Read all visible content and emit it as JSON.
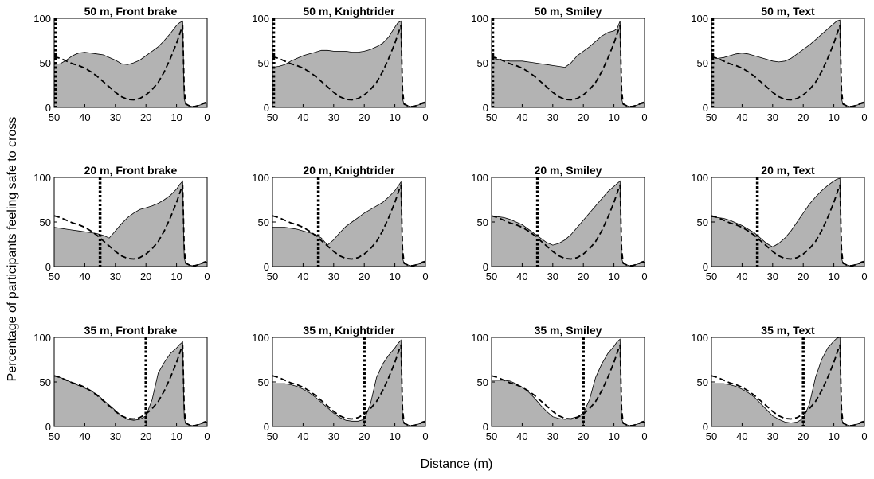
{
  "figure": {
    "ylabel": "Percentage of participants feeling safe to cross",
    "xlabel": "Distance (m)"
  },
  "colors": {
    "fill": "#b3b3b3",
    "line": "#000000",
    "background": "#ffffff"
  },
  "chart_data": {
    "type": "area",
    "xlim": [
      50,
      0
    ],
    "ylim": [
      0,
      100
    ],
    "x_ticks": [
      50,
      40,
      30,
      20,
      10,
      0
    ],
    "y_ticks": [
      0,
      50,
      100
    ],
    "x_tick_labels": [
      "50",
      "40",
      "30",
      "20",
      "10",
      "0"
    ],
    "y_tick_labels": [
      "0",
      "50",
      "100"
    ],
    "x_reversed": true,
    "grid": false,
    "legend": "none",
    "x": [
      50,
      48,
      46,
      44,
      42,
      40,
      38,
      36,
      34,
      32,
      30,
      28,
      26,
      24,
      22,
      20,
      18,
      16,
      14,
      12,
      10,
      9,
      8,
      7.5,
      7,
      6,
      5,
      4,
      3,
      2,
      1,
      0
    ],
    "reference_curve": {
      "style": "dashed",
      "values": [
        57,
        55,
        52,
        49,
        47,
        44,
        40,
        35,
        29,
        23,
        17,
        12,
        9,
        8.5,
        10,
        14,
        20,
        28,
        40,
        55,
        72,
        82,
        92,
        20,
        4,
        2,
        1,
        1,
        2,
        3,
        5,
        6
      ]
    },
    "panels": [
      {
        "title": "50 m, Front brake",
        "row": 0,
        "col": 0,
        "dotted_line_x": 50,
        "values": [
          48,
          49,
          53,
          58,
          61,
          62,
          61,
          60,
          59,
          56,
          53,
          49,
          48,
          50,
          53,
          58,
          63,
          68,
          75,
          83,
          92,
          95,
          97,
          10,
          3,
          2,
          1,
          1,
          2,
          3,
          4,
          5
        ]
      },
      {
        "title": "50 m, Knightrider",
        "row": 0,
        "col": 1,
        "dotted_line_x": 50,
        "values": [
          45,
          46,
          48,
          52,
          55,
          58,
          60,
          62,
          64,
          64,
          63,
          63,
          63,
          62,
          62,
          63,
          65,
          68,
          72,
          79,
          90,
          95,
          97,
          10,
          3,
          2,
          1,
          1,
          2,
          3,
          4,
          5
        ]
      },
      {
        "title": "50 m, Smiley",
        "row": 0,
        "col": 2,
        "dotted_line_x": 50,
        "values": [
          55,
          54,
          53,
          52,
          52,
          52,
          51,
          50,
          49,
          48,
          47,
          46,
          45,
          50,
          58,
          63,
          68,
          74,
          80,
          84,
          86,
          88,
          97,
          10,
          3,
          2,
          1,
          1,
          2,
          3,
          4,
          5
        ]
      },
      {
        "title": "50 m, Text",
        "row": 0,
        "col": 3,
        "dotted_line_x": 50,
        "values": [
          56,
          55,
          56,
          58,
          60,
          61,
          60,
          58,
          56,
          54,
          52,
          51,
          52,
          55,
          60,
          65,
          70,
          76,
          82,
          88,
          94,
          97,
          98,
          10,
          3,
          2,
          1,
          1,
          2,
          3,
          4,
          5
        ]
      },
      {
        "title": "20 m, Front brake",
        "row": 1,
        "col": 0,
        "dotted_line_x": 35,
        "values": [
          44,
          43,
          42,
          41,
          40,
          39,
          38,
          37,
          35,
          32,
          40,
          48,
          55,
          60,
          64,
          66,
          68,
          71,
          75,
          80,
          87,
          92,
          96,
          10,
          3,
          2,
          1,
          1,
          2,
          3,
          4,
          5
        ]
      },
      {
        "title": "20 m, Knightrider",
        "row": 1,
        "col": 1,
        "dotted_line_x": 35,
        "values": [
          44,
          44,
          44,
          43,
          42,
          40,
          38,
          36,
          32,
          24,
          30,
          38,
          45,
          50,
          55,
          60,
          64,
          68,
          72,
          78,
          85,
          90,
          95,
          10,
          3,
          2,
          1,
          1,
          2,
          3,
          4,
          5
        ]
      },
      {
        "title": "20 m, Smiley",
        "row": 1,
        "col": 2,
        "dotted_line_x": 35,
        "values": [
          57,
          56,
          55,
          53,
          50,
          47,
          42,
          37,
          32,
          27,
          24,
          26,
          30,
          36,
          44,
          52,
          60,
          68,
          76,
          84,
          90,
          93,
          96,
          10,
          3,
          2,
          1,
          1,
          2,
          3,
          4,
          5
        ]
      },
      {
        "title": "20 m, Text",
        "row": 1,
        "col": 3,
        "dotted_line_x": 35,
        "values": [
          56,
          55,
          54,
          52,
          49,
          46,
          42,
          38,
          32,
          26,
          22,
          26,
          32,
          40,
          50,
          60,
          70,
          78,
          85,
          91,
          96,
          98,
          99,
          10,
          3,
          2,
          1,
          1,
          2,
          3,
          4,
          5
        ]
      },
      {
        "title": "35 m, Front brake",
        "row": 2,
        "col": 0,
        "dotted_line_x": 20,
        "values": [
          57,
          55,
          52,
          49,
          46,
          43,
          40,
          36,
          30,
          24,
          18,
          12,
          8,
          7,
          8,
          12,
          30,
          60,
          72,
          82,
          88,
          92,
          95,
          10,
          3,
          2,
          1,
          1,
          2,
          3,
          4,
          5
        ]
      },
      {
        "title": "35 m, Knightrider",
        "row": 2,
        "col": 1,
        "dotted_line_x": 20,
        "values": [
          48,
          48,
          48,
          47,
          45,
          42,
          38,
          33,
          27,
          21,
          15,
          10,
          7,
          6,
          6,
          8,
          25,
          55,
          70,
          80,
          88,
          93,
          97,
          10,
          3,
          2,
          1,
          1,
          2,
          3,
          4,
          5
        ]
      },
      {
        "title": "35 m, Smiley",
        "row": 2,
        "col": 2,
        "dotted_line_x": 20,
        "values": [
          52,
          52,
          52,
          51,
          48,
          44,
          39,
          32,
          24,
          17,
          11,
          9,
          8,
          9,
          11,
          15,
          30,
          55,
          70,
          82,
          90,
          95,
          98,
          10,
          3,
          2,
          1,
          1,
          2,
          3,
          4,
          5
        ]
      },
      {
        "title": "35 m, Text",
        "row": 2,
        "col": 3,
        "dotted_line_x": 20,
        "values": [
          48,
          48,
          48,
          47,
          45,
          42,
          38,
          33,
          26,
          19,
          12,
          8,
          5,
          4,
          5,
          9,
          25,
          55,
          75,
          88,
          96,
          99,
          100,
          10,
          3,
          2,
          1,
          1,
          2,
          3,
          4,
          5
        ]
      }
    ]
  }
}
